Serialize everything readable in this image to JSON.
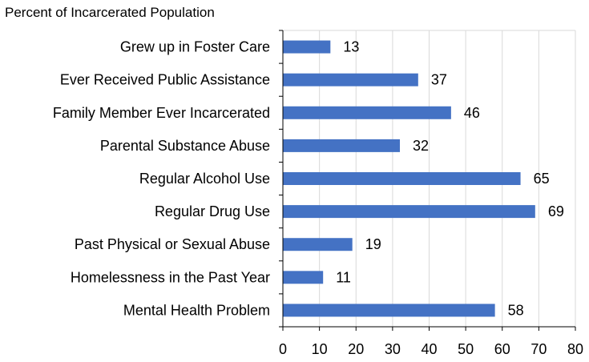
{
  "chart_data": {
    "type": "bar",
    "orientation": "horizontal",
    "title": "Percent of Incarcerated Population",
    "categories": [
      "Grew up in Foster Care",
      "Ever Received Public Assistance",
      "Family Member Ever Incarcerated",
      "Parental Substance Abuse",
      "Regular Alcohol Use",
      "Regular Drug Use",
      "Past Physical or Sexual Abuse",
      "Homelessness in the Past Year",
      "Mental Health Problem"
    ],
    "values": [
      13,
      37,
      46,
      32,
      65,
      69,
      19,
      11,
      58
    ],
    "data_labels": [
      "13",
      "37",
      "46",
      "32",
      "65",
      "69",
      "19",
      "11",
      "58"
    ],
    "xlim": [
      0,
      80
    ],
    "xticks": [
      "0",
      "10",
      "20",
      "30",
      "40",
      "50",
      "60",
      "70",
      "80"
    ],
    "grid": true,
    "bar_color": "#4472C4",
    "grid_color": "#D9D9D9"
  }
}
